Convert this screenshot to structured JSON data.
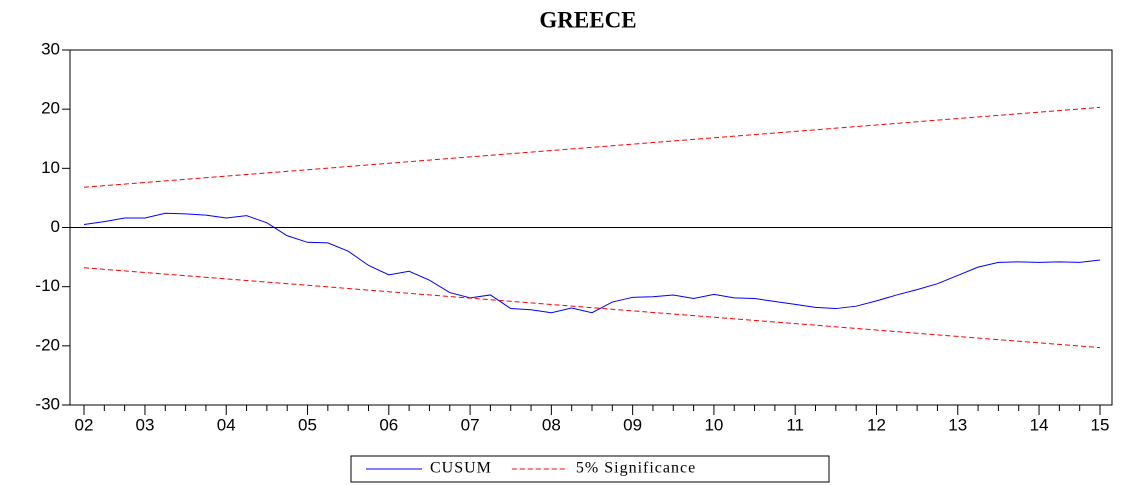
{
  "chart_data": {
    "type": "line",
    "title": "GREECE",
    "categories": [
      "02",
      null,
      null,
      "03",
      null,
      null,
      null,
      "04",
      null,
      null,
      null,
      "05",
      null,
      null,
      null,
      "06",
      null,
      null,
      null,
      "07",
      null,
      null,
      null,
      "08",
      null,
      null,
      null,
      "09",
      null,
      null,
      null,
      "10",
      null,
      null,
      null,
      "11",
      null,
      null,
      null,
      "12",
      null,
      null,
      null,
      "13",
      null,
      null,
      null,
      "14",
      null,
      null,
      "15"
    ],
    "series": [
      {
        "name": "CUSUM",
        "color": "#0000ff",
        "dash": false,
        "values": [
          0.5,
          1.0,
          1.6,
          1.6,
          2.4,
          2.3,
          2.1,
          1.6,
          2.0,
          0.8,
          -1.4,
          -2.5,
          -2.6,
          -4.0,
          -6.4,
          -8.0,
          -7.4,
          -8.9,
          -11.0,
          -11.9,
          -11.4,
          -13.7,
          -13.9,
          -14.4,
          -13.6,
          -14.4,
          -12.6,
          -11.8,
          -11.7,
          -11.4,
          -12.0,
          -11.3,
          -11.9,
          -12.0,
          -12.5,
          -13.0,
          -13.5,
          -13.7,
          -13.3,
          -12.4,
          -11.4,
          -10.5,
          -9.5,
          -8.1,
          -6.7,
          -5.9,
          -5.8,
          -5.9,
          -5.8,
          -5.9,
          -5.5
        ]
      },
      {
        "name": "5% Significance",
        "color": "#ff0000",
        "dash": true,
        "values": [
          6.8,
          7.07,
          7.34,
          7.61,
          7.88,
          8.15,
          8.42,
          8.69,
          8.96,
          9.23,
          9.5,
          9.77,
          10.04,
          10.31,
          10.58,
          10.85,
          11.12,
          11.39,
          11.66,
          11.93,
          12.2,
          12.47,
          12.74,
          13.01,
          13.28,
          13.55,
          13.82,
          14.09,
          14.36,
          14.63,
          14.9,
          15.17,
          15.44,
          15.71,
          15.98,
          16.25,
          16.52,
          16.79,
          17.06,
          17.33,
          17.6,
          17.87,
          18.14,
          18.41,
          18.68,
          18.95,
          19.22,
          19.49,
          19.76,
          20.03,
          20.3
        ]
      },
      {
        "color": "#ff0000",
        "dash": true,
        "values": [
          -6.8,
          -7.07,
          -7.34,
          -7.61,
          -7.88,
          -8.15,
          -8.42,
          -8.69,
          -8.96,
          -9.23,
          -9.5,
          -9.77,
          -10.04,
          -10.31,
          -10.58,
          -10.85,
          -11.12,
          -11.39,
          -11.66,
          -11.93,
          -12.2,
          -12.47,
          -12.74,
          -13.01,
          -13.28,
          -13.55,
          -13.82,
          -14.09,
          -14.36,
          -14.63,
          -14.9,
          -15.17,
          -15.44,
          -15.71,
          -15.98,
          -16.25,
          -16.52,
          -16.79,
          -17.06,
          -17.33,
          -17.6,
          -17.87,
          -18.14,
          -18.41,
          -18.68,
          -18.95,
          -19.22,
          -19.49,
          -19.76,
          -20.03,
          -20.3
        ]
      }
    ],
    "ylim": [
      -30,
      30
    ],
    "yticks": [
      -30,
      -20,
      -10,
      0,
      10,
      20,
      30
    ],
    "grid": false
  }
}
